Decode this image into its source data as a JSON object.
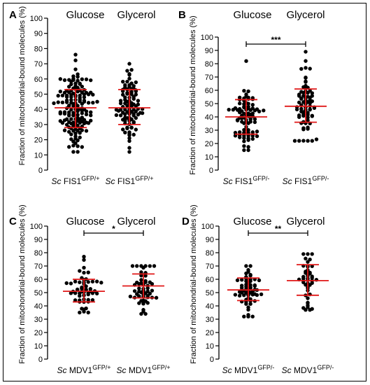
{
  "colors": {
    "dots": "#000000",
    "stats": "#e01818"
  },
  "chart_data": [
    {
      "panel": "A",
      "type": "scatter",
      "conditions": [
        "Glucose",
        "Glycerol"
      ],
      "categories": [
        {
          "prefix": "Sc",
          "name": " FIS1",
          "sup": "GFP/+"
        },
        {
          "prefix": "Sc",
          "name": " FIS1",
          "sup": "GFP/+"
        }
      ],
      "ylabel": "Fraction of mitochondrial-bound molecules (%)",
      "ylim": [
        0,
        100
      ],
      "yticks": [
        0,
        10,
        20,
        30,
        40,
        50,
        60,
        70,
        80,
        90,
        100
      ],
      "significance": null,
      "series": [
        {
          "name": "Glucose",
          "mean": 41,
          "sd_low": 28,
          "sd_high": 53,
          "n": 150,
          "min": 12,
          "max": 76
        },
        {
          "name": "Glycerol",
          "mean": 41,
          "sd_low": 30,
          "sd_high": 53,
          "n": 95,
          "min": 12,
          "max": 70
        }
      ]
    },
    {
      "panel": "B",
      "type": "scatter",
      "conditions": [
        "Glucose",
        "Glycerol"
      ],
      "categories": [
        {
          "prefix": "Sc",
          "name": " FIS1",
          "sup": "GFP/-"
        },
        {
          "prefix": "Sc",
          "name": " FIS1",
          "sup": "GFP/-"
        }
      ],
      "ylabel": "Fraction of mitochondrial-bound molecules (%)",
      "ylim": [
        0,
        100
      ],
      "yticks": [
        0,
        10,
        20,
        30,
        40,
        50,
        60,
        70,
        80,
        90,
        100
      ],
      "significance": "***",
      "series": [
        {
          "name": "Glucose",
          "mean": 40,
          "sd_low": 27,
          "sd_high": 53,
          "n": 85,
          "min": 15,
          "max": 82
        },
        {
          "name": "Glycerol",
          "mean": 48,
          "sd_low": 36,
          "sd_high": 61,
          "n": 75,
          "min": 22,
          "max": 89
        }
      ]
    },
    {
      "panel": "C",
      "type": "scatter",
      "conditions": [
        "Glucose",
        "Glycerol"
      ],
      "categories": [
        {
          "prefix": "Sc",
          "name": " MDV1",
          "sup": "GFP/+"
        },
        {
          "prefix": "Sc",
          "name": " MDV1",
          "sup": "GFP/+"
        }
      ],
      "ylabel": "Fraction of mitochondrial-bound molecules (%)",
      "ylim": [
        0,
        100
      ],
      "yticks": [
        0,
        10,
        20,
        30,
        40,
        50,
        60,
        70,
        80,
        90,
        100
      ],
      "significance": "*",
      "series": [
        {
          "name": "Glucose",
          "mean": 51,
          "sd_low": 43,
          "sd_high": 60,
          "n": 55,
          "min": 35,
          "max": 77
        },
        {
          "name": "Glycerol",
          "mean": 55,
          "sd_low": 46,
          "sd_high": 64,
          "n": 55,
          "min": 34,
          "max": 70
        }
      ]
    },
    {
      "panel": "D",
      "type": "scatter",
      "conditions": [
        "Glucose",
        "Glycerol"
      ],
      "categories": [
        {
          "prefix": "Sc",
          "name": " MDV1",
          "sup": "GFP/-"
        },
        {
          "prefix": "Sc",
          "name": " MDV1",
          "sup": "GFP/-"
        }
      ],
      "ylabel": "Fraction of mitochondrial-bound molecules (%)",
      "ylim": [
        0,
        100
      ],
      "yticks": [
        0,
        10,
        20,
        30,
        40,
        50,
        60,
        70,
        80,
        90,
        100
      ],
      "significance": "**",
      "series": [
        {
          "name": "Glucose",
          "mean": 52,
          "sd_low": 44,
          "sd_high": 61,
          "n": 60,
          "min": 32,
          "max": 70
        },
        {
          "name": "Glycerol",
          "mean": 59,
          "sd_low": 48,
          "sd_high": 71,
          "n": 45,
          "min": 37,
          "max": 79
        }
      ]
    }
  ]
}
